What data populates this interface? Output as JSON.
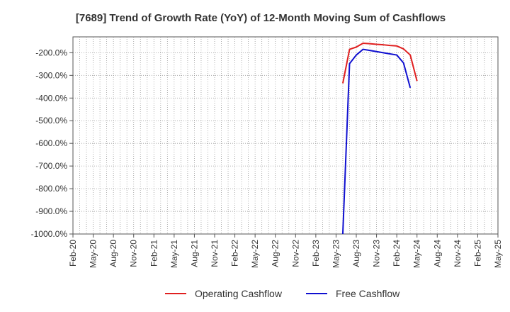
{
  "chart_data": {
    "type": "line",
    "title": "[7689]  Trend of Growth Rate (YoY) of 12-Month Moving Sum of Cashflows",
    "xlabel": "",
    "ylabel": "",
    "ylim": [
      -1000,
      -130
    ],
    "yticks": [
      -200,
      -300,
      -400,
      -500,
      -600,
      -700,
      -800,
      -900,
      -1000
    ],
    "ytick_labels": [
      "-200.0%",
      "-300.0%",
      "-400.0%",
      "-500.0%",
      "-600.0%",
      "-700.0%",
      "-800.0%",
      "-900.0%",
      "-1000.0%"
    ],
    "x_range": [
      "2020-02",
      "2025-05"
    ],
    "x_tick_labels": [
      "Feb-20",
      "May-20",
      "Aug-20",
      "Nov-20",
      "Feb-21",
      "May-21",
      "Aug-21",
      "Nov-21",
      "Feb-22",
      "May-22",
      "Aug-22",
      "Nov-22",
      "Feb-23",
      "May-23",
      "Aug-23",
      "Nov-23",
      "Feb-24",
      "May-24",
      "Aug-24",
      "Nov-24",
      "Feb-25",
      "May-25"
    ],
    "grid": true,
    "legend_position": "bottom",
    "series": [
      {
        "name": "Operating Cashflow",
        "color": "#e02020",
        "points": [
          [
            "2023-06",
            -335
          ],
          [
            "2023-07",
            -185
          ],
          [
            "2023-08",
            -175
          ],
          [
            "2023-09",
            -158
          ],
          [
            "2023-10",
            -160
          ],
          [
            "2023-11",
            -163
          ],
          [
            "2023-12",
            -165
          ],
          [
            "2024-01",
            -168
          ],
          [
            "2024-02",
            -170
          ],
          [
            "2024-03",
            -183
          ],
          [
            "2024-04",
            -210
          ],
          [
            "2024-05",
            -325
          ]
        ]
      },
      {
        "name": "Free Cashflow",
        "color": "#1010d0",
        "points": [
          [
            "2023-06",
            -1000
          ],
          [
            "2023-07",
            -248
          ],
          [
            "2023-08",
            -210
          ],
          [
            "2023-09",
            -185
          ],
          [
            "2023-10",
            -190
          ],
          [
            "2023-11",
            -195
          ],
          [
            "2023-12",
            -200
          ],
          [
            "2024-01",
            -205
          ],
          [
            "2024-02",
            -210
          ],
          [
            "2024-03",
            -245
          ],
          [
            "2024-04",
            -355
          ]
        ]
      }
    ]
  }
}
